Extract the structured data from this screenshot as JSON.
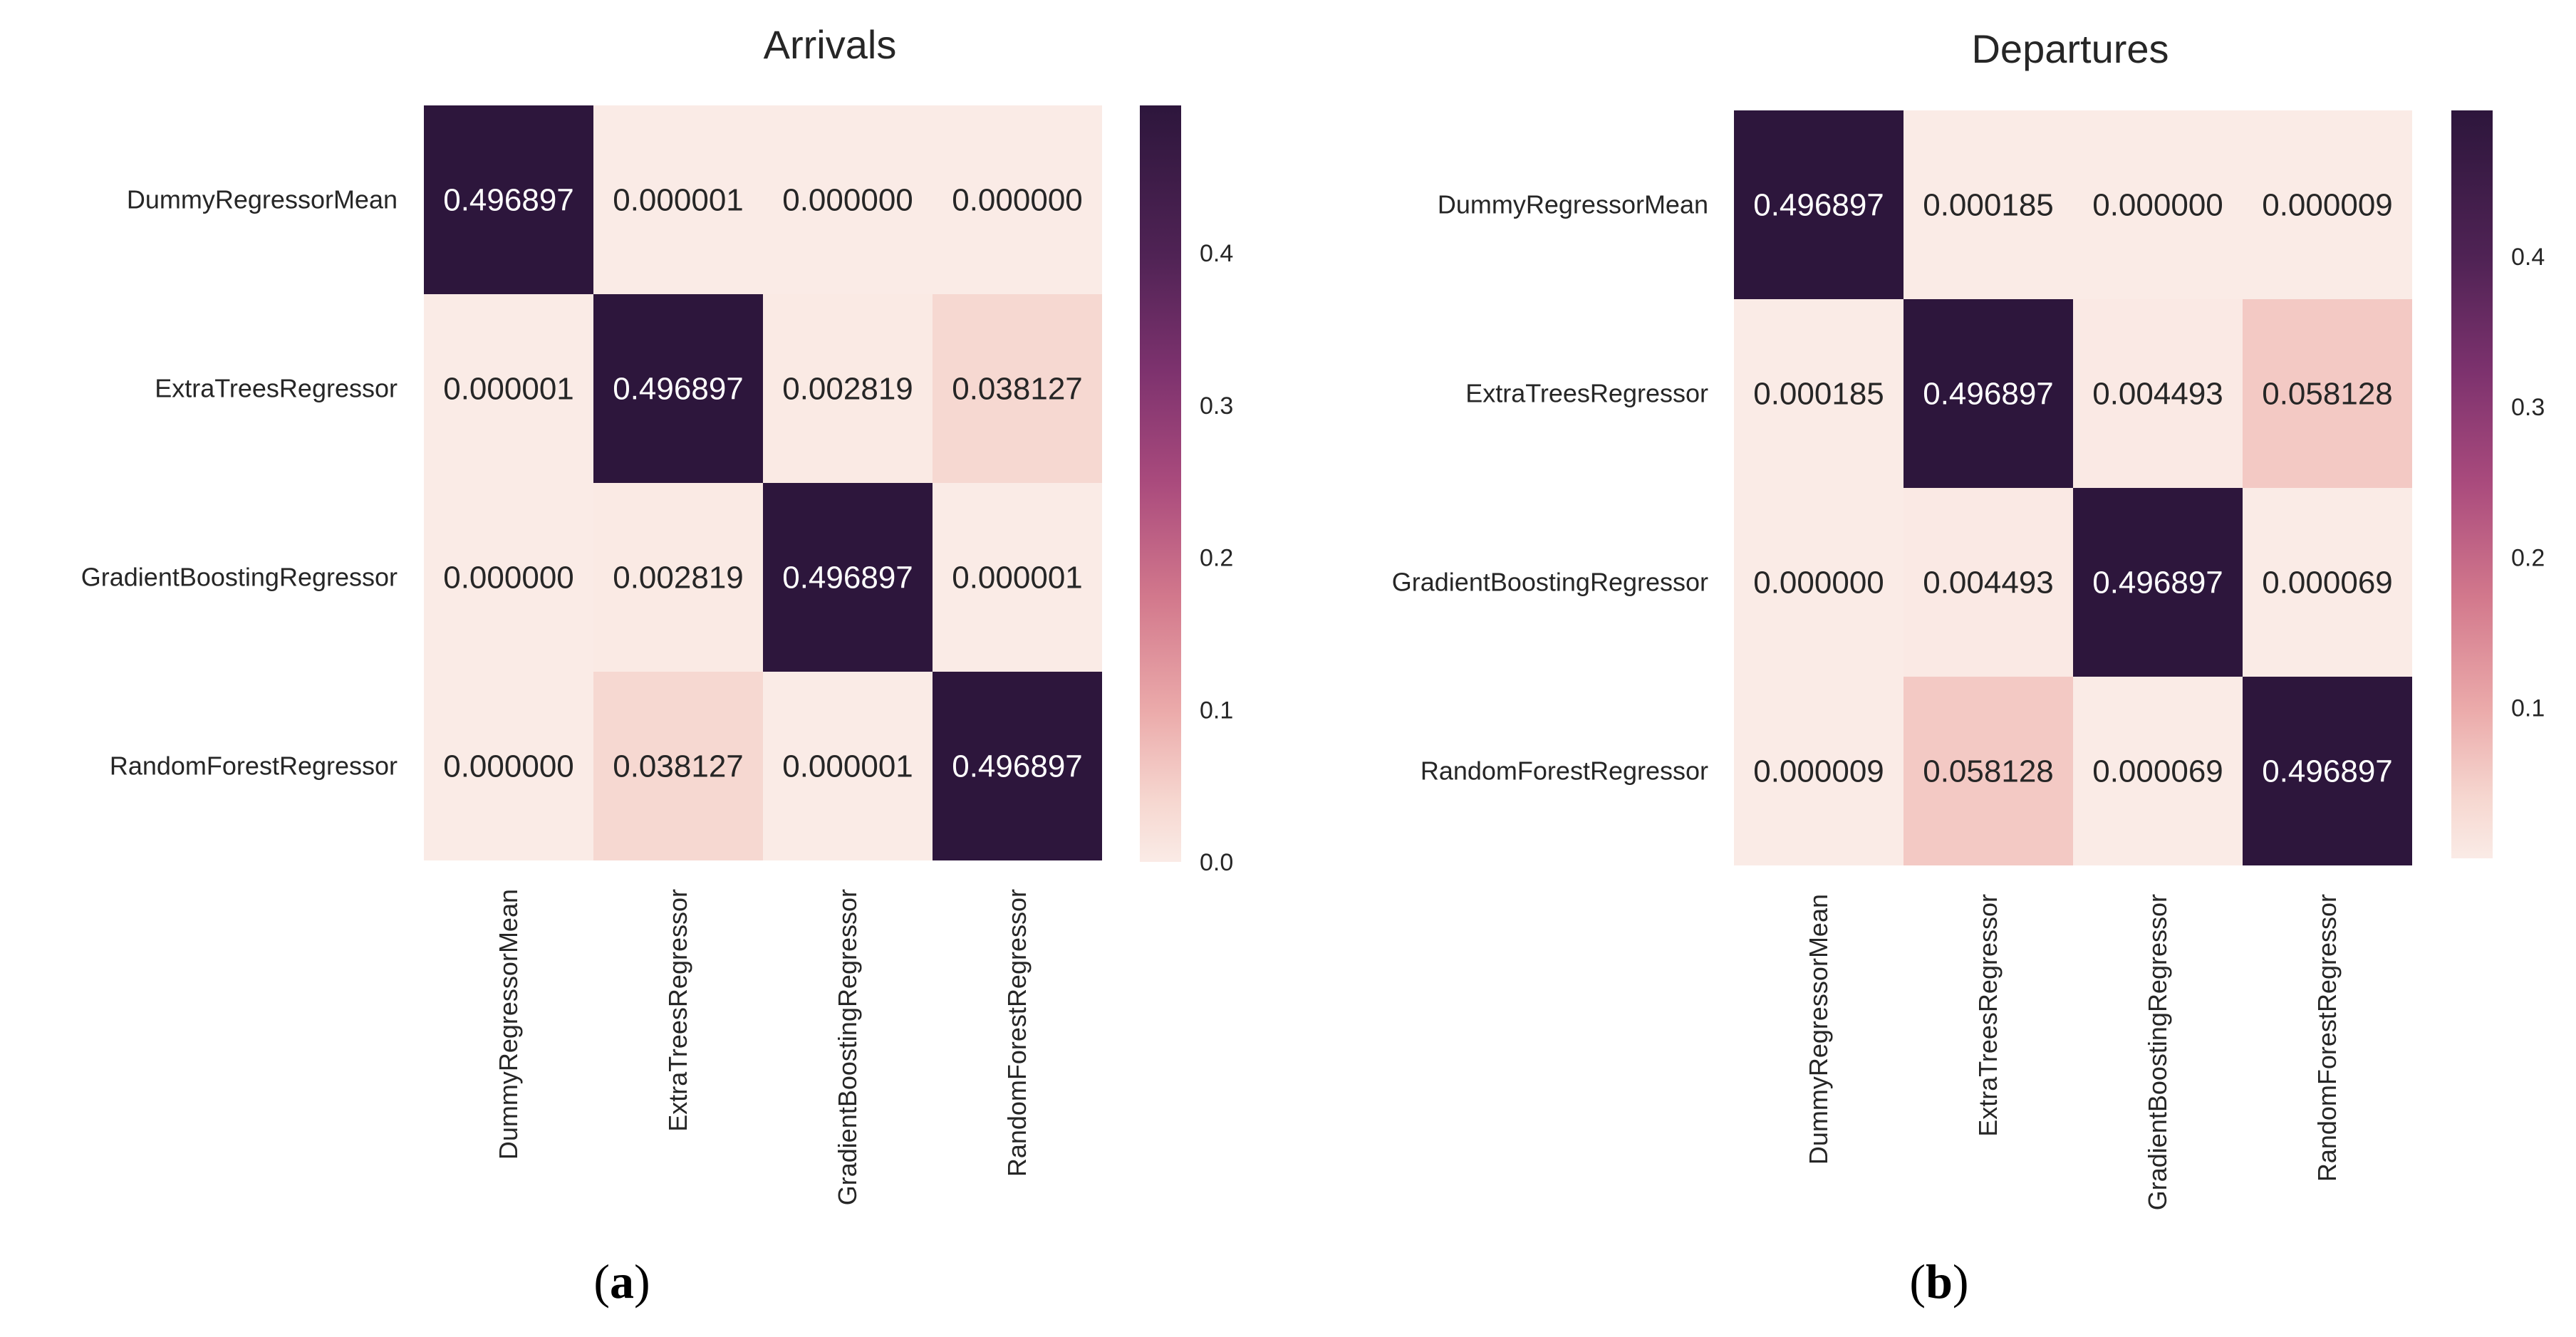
{
  "chart_data": [
    {
      "type": "heatmap",
      "title": "Arrivals",
      "caption": {
        "open": "(",
        "letter": "a",
        "close": ")"
      },
      "row_labels": [
        "DummyRegressorMean",
        "ExtraTreesRegressor",
        "GradientBoostingRegressor",
        "RandomForestRegressor"
      ],
      "col_labels": [
        "DummyRegressorMean",
        "ExtraTreesRegressor",
        "GradientBoostingRegressor",
        "RandomForestRegressor"
      ],
      "values": [
        [
          0.496897,
          1e-06,
          0.0,
          0.0
        ],
        [
          1e-06,
          0.496897,
          0.002819,
          0.038127
        ],
        [
          0.0,
          0.002819,
          0.496897,
          1e-06
        ],
        [
          0.0,
          0.038127,
          1e-06,
          0.496897
        ]
      ],
      "annotations": [
        [
          "0.496897",
          "0.000001",
          "0.000000",
          "0.000000"
        ],
        [
          "0.000001",
          "0.496897",
          "0.002819",
          "0.038127"
        ],
        [
          "0.000000",
          "0.002819",
          "0.496897",
          "0.000001"
        ],
        [
          "0.000000",
          "0.038127",
          "0.000001",
          "0.496897"
        ]
      ],
      "colorbar": {
        "vmin": 0.0,
        "vmax": 0.496897,
        "ticks": [
          0.0,
          0.1,
          0.2,
          0.3,
          0.4
        ],
        "tick_labels": [
          "0.0",
          "0.1",
          "0.2",
          "0.3",
          "0.4"
        ]
      }
    },
    {
      "type": "heatmap",
      "title": "Departures",
      "caption": {
        "open": "(",
        "letter": "b",
        "close": ")"
      },
      "row_labels": [
        "DummyRegressorMean",
        "ExtraTreesRegressor",
        "GradientBoostingRegressor",
        "RandomForestRegressor"
      ],
      "col_labels": [
        "DummyRegressorMean",
        "ExtraTreesRegressor",
        "GradientBoostingRegressor",
        "RandomForestRegressor"
      ],
      "values": [
        [
          0.496897,
          0.000185,
          0.0,
          9e-06
        ],
        [
          0.000185,
          0.496897,
          0.004493,
          0.058128
        ],
        [
          0.0,
          0.004493,
          0.496897,
          6.9e-05
        ],
        [
          9e-06,
          0.058128,
          6.9e-05,
          0.496897
        ]
      ],
      "annotations": [
        [
          "0.496897",
          "0.000185",
          "0.000000",
          "0.000009"
        ],
        [
          "0.000185",
          "0.496897",
          "0.004493",
          "0.058128"
        ],
        [
          "0.000000",
          "0.004493",
          "0.496897",
          "0.000069"
        ],
        [
          "0.000009",
          "0.058128",
          "0.000069",
          "0.496897"
        ]
      ],
      "colorbar": {
        "vmin": 0.0,
        "vmax": 0.496897,
        "ticks": [
          0.1,
          0.2,
          0.3,
          0.4
        ],
        "tick_labels": [
          "0.1",
          "0.2",
          "0.3",
          "0.4"
        ]
      }
    }
  ]
}
